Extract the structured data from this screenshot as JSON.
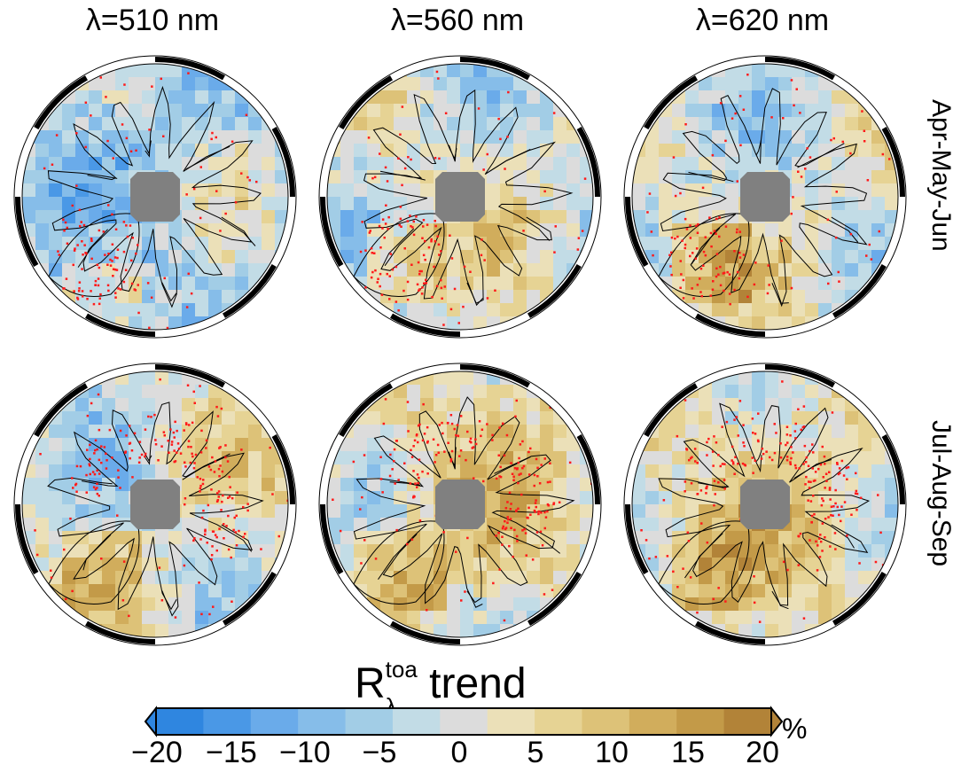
{
  "column_titles": [
    "λ=510 nm",
    "λ=560 nm",
    "λ=620 nm"
  ],
  "row_labels": [
    "Apr-May-Jun",
    "Jul-Aug-Sep"
  ],
  "colorbar": {
    "title_main": "R",
    "title_sup": "toa",
    "title_sub": "λ",
    "title_rest": " trend",
    "unit": "%",
    "ticks": [
      "−20",
      "−15",
      "−10",
      "−5",
      "0",
      "5",
      "10",
      "15",
      "20"
    ],
    "range": [
      -20,
      20
    ],
    "colors": [
      "#2f86e0",
      "#4a98e6",
      "#6aabea",
      "#86bde9",
      "#a2cde6",
      "#c2dce6",
      "#dcdcdc",
      "#ebe0b8",
      "#e6d394",
      "#ddc278",
      "#d1ad5c",
      "#c39a48",
      "#b28338"
    ]
  },
  "maps": [
    {
      "row": "Apr-May-Jun",
      "column": "λ=510 nm",
      "dominant_trend": "negative"
    },
    {
      "row": "Apr-May-Jun",
      "column": "λ=560 nm",
      "dominant_trend": "mixed"
    },
    {
      "row": "Apr-May-Jun",
      "column": "λ=620 nm",
      "dominant_trend": "mixed"
    },
    {
      "row": "Jul-Aug-Sep",
      "column": "λ=510 nm",
      "dominant_trend": "mixed"
    },
    {
      "row": "Jul-Aug-Sep",
      "column": "λ=560 nm",
      "dominant_trend": "positive"
    },
    {
      "row": "Jul-Aug-Sep",
      "column": "λ=620 nm",
      "dominant_trend": "positive"
    }
  ],
  "map_style": {
    "pole_mask_color": "#808080",
    "significance_marker_color": "#ff1a1a",
    "coastline_color": "#000000"
  }
}
